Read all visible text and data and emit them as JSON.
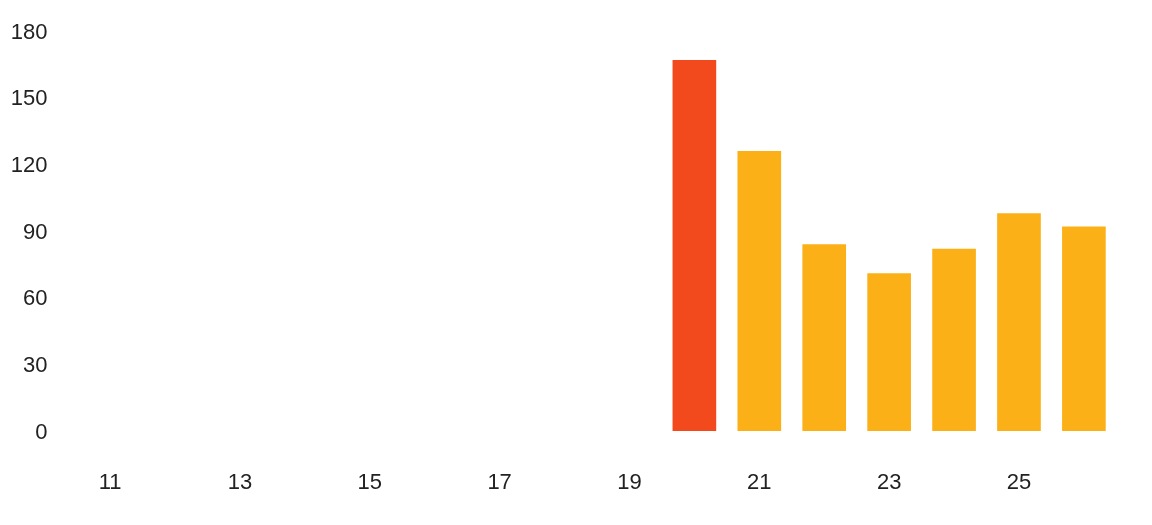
{
  "chart_data": {
    "type": "bar",
    "categories": [
      "11",
      null,
      "13",
      null,
      "15",
      null,
      "17",
      null,
      "19",
      null,
      "21",
      null,
      "23",
      null,
      "25",
      null
    ],
    "values": [
      null,
      null,
      null,
      null,
      null,
      null,
      null,
      null,
      null,
      167,
      126,
      84,
      71,
      82,
      98,
      92
    ],
    "colors": [
      "#fbb017",
      "#fbb017",
      "#fbb017",
      "#fbb017",
      "#fbb017",
      "#fbb017",
      "#fbb017",
      "#fbb017",
      "#fbb017",
      "#f24a1c",
      "#fbb017",
      "#fbb017",
      "#fbb017",
      "#fbb017",
      "#fbb017",
      "#fbb017"
    ],
    "ylim": [
      0,
      180
    ],
    "yticks": [
      0,
      30,
      60,
      90,
      120,
      150,
      180
    ],
    "grid": false
  }
}
